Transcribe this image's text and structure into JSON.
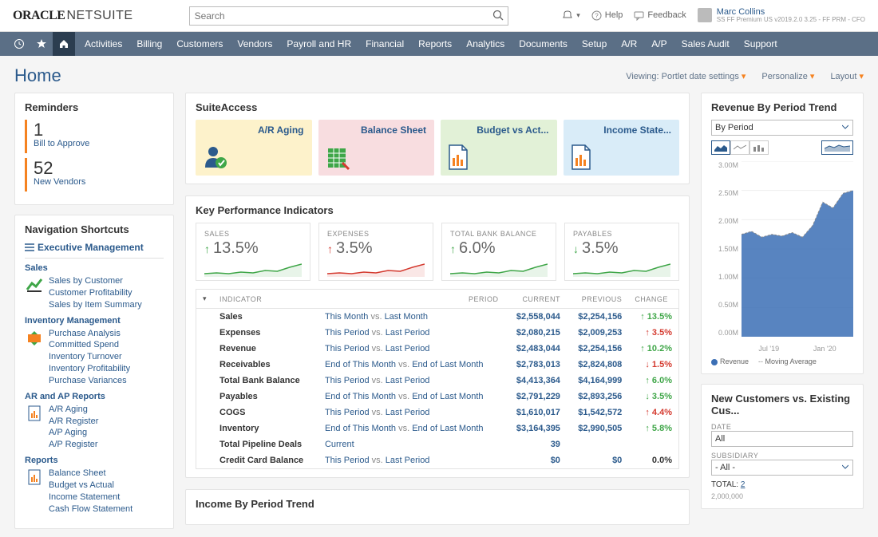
{
  "topbar": {
    "logo_primary": "ORACLE",
    "logo_secondary": "NETSUITE",
    "search_placeholder": "Search",
    "help_label": "Help",
    "feedback_label": "Feedback",
    "user_name": "Marc Collins",
    "user_meta": "SS FF Premium US v2019.2.0 3.25 - FF PRM - CFO"
  },
  "nav_items": [
    "Activities",
    "Billing",
    "Customers",
    "Vendors",
    "Payroll and HR",
    "Financial",
    "Reports",
    "Analytics",
    "Documents",
    "Setup",
    "A/R",
    "A/P",
    "Sales Audit",
    "Support"
  ],
  "page": {
    "title": "Home",
    "viewing_label": "Viewing: Portlet date settings",
    "personalize_label": "Personalize",
    "layout_label": "Layout"
  },
  "reminders": {
    "title": "Reminders",
    "items": [
      {
        "count": "1",
        "label": "Bill to Approve"
      },
      {
        "count": "52",
        "label": "New Vendors"
      }
    ]
  },
  "shortcuts": {
    "title": "Navigation Shortcuts",
    "exec_label": "Executive Management",
    "groups": [
      {
        "heading": "Sales",
        "icon_color": "#3fa648",
        "links": [
          "Sales by Customer",
          "Customer Profitability",
          "Sales by Item Summary"
        ]
      },
      {
        "heading": "Inventory Management",
        "icon_color": "#f58220",
        "links": [
          "Purchase Analysis",
          "Committed Spend",
          "Inventory Turnover",
          "Inventory Profitability",
          "Purchase Variances"
        ]
      },
      {
        "heading": "AR and AP Reports",
        "icon_color": "#f58220",
        "links": [
          "A/R Aging",
          "A/R Register",
          "A/P Aging",
          "A/P Register"
        ]
      },
      {
        "heading": "Reports",
        "icon_color": "#f58220",
        "links": [
          "Balance Sheet",
          "Budget vs Actual",
          "Income Statement",
          "Cash Flow Statement"
        ]
      }
    ]
  },
  "suite": {
    "title": "SuiteAccess",
    "tiles": [
      {
        "label": "A/R Aging",
        "bg": "tile-yellow",
        "icon": "person"
      },
      {
        "label": "Balance Sheet",
        "bg": "tile-pink",
        "icon": "sheet"
      },
      {
        "label": "Budget vs Act...",
        "bg": "tile-green",
        "icon": "doc"
      },
      {
        "label": "Income State...",
        "bg": "tile-blue",
        "icon": "doc"
      }
    ]
  },
  "kpi": {
    "title": "Key Performance Indicators",
    "cards": [
      {
        "label": "SALES",
        "value": "13.5%",
        "direction": "up",
        "color": "#3fa648",
        "spark_color": "#3fa648"
      },
      {
        "label": "EXPENSES",
        "value": "3.5%",
        "direction": "up",
        "color": "#d43a2f",
        "spark_color": "#d43a2f"
      },
      {
        "label": "TOTAL BANK BALANCE",
        "value": "6.0%",
        "direction": "up",
        "color": "#3fa648",
        "spark_color": "#3fa648"
      },
      {
        "label": "PAYABLES",
        "value": "3.5%",
        "direction": "down",
        "color": "#3fa648",
        "spark_color": "#3fa648"
      }
    ],
    "columns": [
      "INDICATOR",
      "PERIOD",
      "CURRENT",
      "PREVIOUS",
      "CHANGE"
    ],
    "rows": [
      {
        "indicator": "Sales",
        "period_a": "This Month",
        "period_b": "Last Month",
        "current": "$2,558,044",
        "previous": "$2,254,156",
        "change": "13.5%",
        "dir": "up",
        "dircolor": "u"
      },
      {
        "indicator": "Expenses",
        "period_a": "This Period",
        "period_b": "Last Period",
        "current": "$2,080,215",
        "previous": "$2,009,253",
        "change": "3.5%",
        "dir": "up",
        "dircolor": "d"
      },
      {
        "indicator": "Revenue",
        "period_a": "This Period",
        "period_b": "Last Period",
        "current": "$2,483,044",
        "previous": "$2,254,156",
        "change": "10.2%",
        "dir": "up",
        "dircolor": "u"
      },
      {
        "indicator": "Receivables",
        "period_a": "End of This Month",
        "period_b": "End of Last Month",
        "current": "$2,783,013",
        "previous": "$2,824,808",
        "change": "1.5%",
        "dir": "down",
        "dircolor": "d"
      },
      {
        "indicator": "Total Bank Balance",
        "period_a": "This Period",
        "period_b": "Last Period",
        "current": "$4,413,364",
        "previous": "$4,164,999",
        "change": "6.0%",
        "dir": "up",
        "dircolor": "u"
      },
      {
        "indicator": "Payables",
        "period_a": "End of This Month",
        "period_b": "End of Last Month",
        "current": "$2,791,229",
        "previous": "$2,893,256",
        "change": "3.5%",
        "dir": "down",
        "dircolor": "u"
      },
      {
        "indicator": "COGS",
        "period_a": "This Period",
        "period_b": "Last Period",
        "current": "$1,610,017",
        "previous": "$1,542,572",
        "change": "4.4%",
        "dir": "up",
        "dircolor": "d"
      },
      {
        "indicator": "Inventory",
        "period_a": "End of This Month",
        "period_b": "End of Last Month",
        "current": "$3,164,395",
        "previous": "$2,990,505",
        "change": "5.8%",
        "dir": "up",
        "dircolor": "u"
      },
      {
        "indicator": "Total Pipeline Deals",
        "period_a": "Current",
        "period_b": "",
        "current": "39",
        "previous": "",
        "change": "",
        "dir": "",
        "dircolor": ""
      },
      {
        "indicator": "Credit Card Balance",
        "period_a": "This Period",
        "period_b": "Last Period",
        "current": "$0",
        "previous": "$0",
        "change": "0.0%",
        "dir": "",
        "dircolor": ""
      }
    ]
  },
  "income_trend_title": "Income By Period Trend",
  "revenue_panel": {
    "title": "Revenue By Period Trend",
    "selector": "By Period",
    "ylabels": [
      "3.00M",
      "2.50M",
      "2.00M",
      "1.50M",
      "1.00M",
      "0.50M",
      "0.00M"
    ],
    "xlabels": [
      "Jul '19",
      "Jan '20"
    ],
    "ylim_max": 3.0,
    "series": {
      "area_color": "#3b6fb5",
      "line_color": "#888",
      "points": [
        1.75,
        1.8,
        1.7,
        1.75,
        1.72,
        1.78,
        1.7,
        1.9,
        2.3,
        2.2,
        2.45,
        2.5
      ]
    },
    "legend": [
      {
        "label": "Revenue",
        "color": "#3b6fb5",
        "type": "dot"
      },
      {
        "label": "Moving Average",
        "color": "#888",
        "type": "dash"
      }
    ]
  },
  "customers_panel": {
    "title": "New Customers vs. Existing Cus...",
    "date_label": "DATE",
    "date_value": "All",
    "sub_label": "SUBSIDIARY",
    "sub_value": "- All -",
    "total_label": "TOTAL:",
    "total_value": "2",
    "y_top": "2,000,000"
  }
}
